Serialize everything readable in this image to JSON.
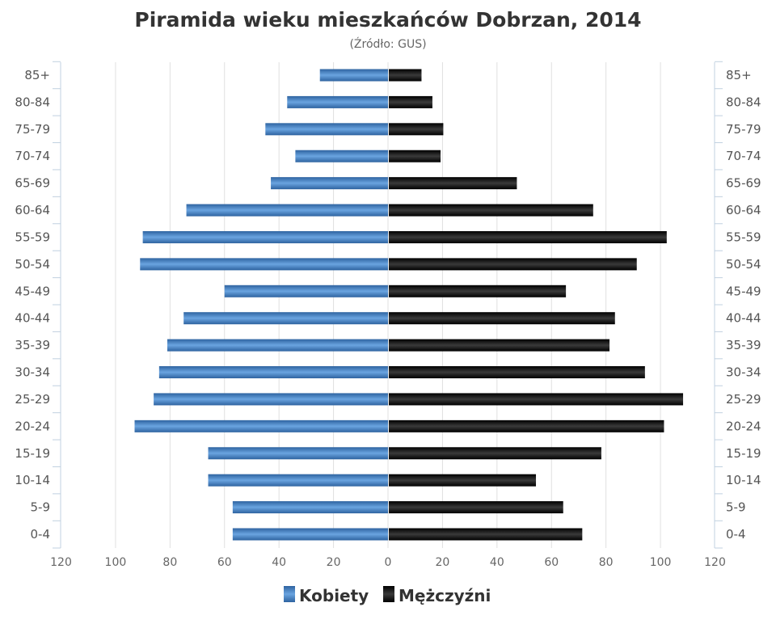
{
  "chart_data": {
    "type": "bar",
    "orientation": "horizontal-population-pyramid",
    "title": "Piramida wieku mieszkańców Dobrzan, 2014",
    "subtitle": "(Źródło: GUS)",
    "categories": [
      "85+",
      "80-84",
      "75-79",
      "70-74",
      "65-69",
      "60-64",
      "55-59",
      "50-54",
      "45-49",
      "40-44",
      "35-39",
      "30-34",
      "25-29",
      "20-24",
      "15-19",
      "10-14",
      "5-9",
      "0-4"
    ],
    "series": [
      {
        "name": "Kobiety",
        "side": "left",
        "color": "#3d78b8",
        "values": [
          25,
          37,
          45,
          34,
          43,
          74,
          90,
          91,
          60,
          75,
          81,
          84,
          86,
          93,
          66,
          66,
          57,
          57
        ]
      },
      {
        "name": "Mężczyźni",
        "side": "right",
        "color": "#111111",
        "values": [
          12,
          16,
          20,
          19,
          47,
          75,
          102,
          91,
          65,
          83,
          81,
          94,
          108,
          101,
          78,
          54,
          64,
          71
        ]
      }
    ],
    "xlim": [
      -120,
      120
    ],
    "xticks": [
      120,
      100,
      80,
      60,
      40,
      20,
      0,
      20,
      40,
      60,
      80,
      100,
      120
    ],
    "grid": true,
    "legend": "bottom-center"
  }
}
